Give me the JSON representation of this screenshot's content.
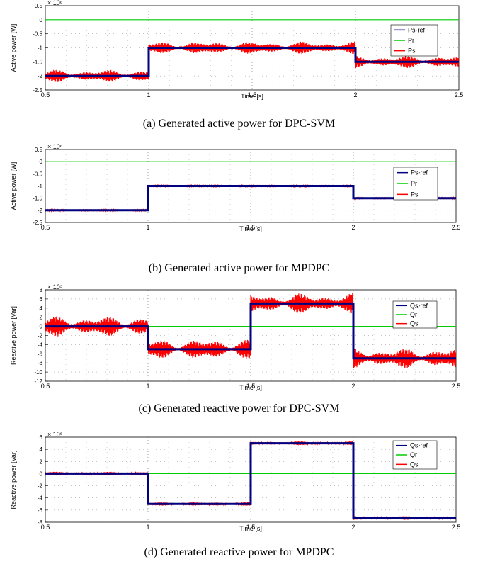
{
  "chart_data": [
    {
      "type": "line",
      "caption": "(a) Generated active power for DPC-SVM",
      "xlabel": "Time [s]",
      "ylabel": "Active power [W]",
      "exponent": "× 10⁶",
      "xlim": [
        0.5,
        2.5
      ],
      "ylim": [
        -2.5,
        0.5
      ],
      "xticks": [
        "0.5",
        "1",
        "1.5",
        "2",
        "2.5"
      ],
      "yticks": [
        "0.5",
        "0",
        "-0.5",
        "-1",
        "-1.5",
        "-2",
        "-2.5"
      ],
      "grid": true,
      "legend_position": "right",
      "series": [
        {
          "name": "Ps-ref",
          "color": "#000080",
          "x": [
            0.5,
            1.0,
            1.0,
            2.0,
            2.0,
            2.5
          ],
          "y": [
            -2.0,
            -2.0,
            -1.0,
            -1.0,
            -1.5,
            -1.5
          ]
        },
        {
          "name": "Pr",
          "color": "#00cc00",
          "x": [
            0.5,
            2.5
          ],
          "y": [
            0,
            0
          ]
        },
        {
          "name": "Ps",
          "color": "#ff0000",
          "x": [
            0.5,
            1.0,
            1.0,
            2.0,
            2.0,
            2.5
          ],
          "y": [
            -2.0,
            -2.0,
            -1.0,
            -1.0,
            -1.5,
            -1.5
          ],
          "ripple": 0.25
        }
      ]
    },
    {
      "type": "line",
      "caption": "(b) Generated active power for MPDPC",
      "xlabel": "Time [s]",
      "ylabel": "Active power [W]",
      "exponent": "× 10⁶",
      "xlim": [
        0.5,
        2.5
      ],
      "ylim": [
        -2.5,
        0.5
      ],
      "xticks": [
        "0.5",
        "1",
        "1.5",
        "2",
        "2.5"
      ],
      "yticks": [
        "0.5",
        "0",
        "-0.5",
        "-1",
        "-1.5",
        "-2",
        "-2.5"
      ],
      "grid": true,
      "legend_position": "right",
      "series": [
        {
          "name": "Ps-ref",
          "color": "#000080",
          "x": [
            0.5,
            1.0,
            1.0,
            2.0,
            2.0,
            2.5
          ],
          "y": [
            -2.0,
            -2.0,
            -1.0,
            -1.0,
            -1.5,
            -1.5
          ]
        },
        {
          "name": "Pr",
          "color": "#00cc00",
          "x": [
            0.5,
            2.5
          ],
          "y": [
            0,
            0
          ]
        },
        {
          "name": "Ps",
          "color": "#ff0000",
          "x": [
            0.5,
            1.0,
            1.0,
            2.0,
            2.0,
            2.5
          ],
          "y": [
            -2.0,
            -2.0,
            -1.0,
            -1.0,
            -1.5,
            -1.5
          ],
          "ripple": 0.04
        }
      ]
    },
    {
      "type": "line",
      "caption": "(c) Generated reactive power for DPC-SVM",
      "xlabel": "Time [s]",
      "ylabel": "Reactive power [Var]",
      "exponent": "× 10⁵",
      "xlim": [
        0.5,
        2.5
      ],
      "ylim": [
        -12,
        8
      ],
      "xticks": [
        "0.5",
        "1",
        "1.5",
        "2",
        "2.5"
      ],
      "yticks": [
        "8",
        "6",
        "4",
        "2",
        "0",
        "-2",
        "-4",
        "-6",
        "-8",
        "-10",
        "-12"
      ],
      "grid": true,
      "legend_position": "top-right",
      "series": [
        {
          "name": "Qs-ref",
          "color": "#000080",
          "x": [
            0.5,
            1.0,
            1.0,
            1.5,
            1.5,
            2.0,
            2.0,
            2.5
          ],
          "y": [
            0,
            0,
            -5,
            -5,
            5,
            5,
            -7,
            -7
          ]
        },
        {
          "name": "Qr",
          "color": "#00cc00",
          "x": [
            0.5,
            2.5
          ],
          "y": [
            0,
            0
          ]
        },
        {
          "name": "Qs",
          "color": "#ff0000",
          "x": [
            0.5,
            1.0,
            1.0,
            1.5,
            1.5,
            2.0,
            2.0,
            2.5
          ],
          "y": [
            0,
            0,
            -5,
            -5,
            5,
            5,
            -7,
            -7
          ],
          "ripple": 2.5
        }
      ]
    },
    {
      "type": "line",
      "caption": "(d) Generated reactive power for MPDPC",
      "xlabel": "Time [s]",
      "ylabel": "Reactive power [Var]",
      "exponent": "× 10⁵",
      "xlim": [
        0.5,
        2.5
      ],
      "ylim": [
        -8,
        6
      ],
      "xticks": [
        "0.5",
        "1",
        "1.5",
        "2",
        "2.5"
      ],
      "yticks": [
        "6",
        "4",
        "2",
        "0",
        "-2",
        "-4",
        "-6",
        "-8"
      ],
      "grid": true,
      "legend_position": "top-right",
      "series": [
        {
          "name": "Qs-ref",
          "color": "#000080",
          "x": [
            0.5,
            1.0,
            1.0,
            1.5,
            1.5,
            2.0,
            2.0,
            2.5
          ],
          "y": [
            0,
            0,
            -5,
            -5,
            5,
            5,
            -7.3,
            -7.3
          ]
        },
        {
          "name": "Qr",
          "color": "#00cc00",
          "x": [
            0.5,
            2.5
          ],
          "y": [
            0,
            0
          ]
        },
        {
          "name": "Qs",
          "color": "#ff0000",
          "x": [
            0.5,
            1.0,
            1.0,
            1.5,
            1.5,
            2.0,
            2.0,
            2.5
          ],
          "y": [
            0,
            0,
            -5,
            -5,
            5,
            5,
            -7.3,
            -7.3
          ],
          "ripple": 0.35
        }
      ]
    }
  ]
}
